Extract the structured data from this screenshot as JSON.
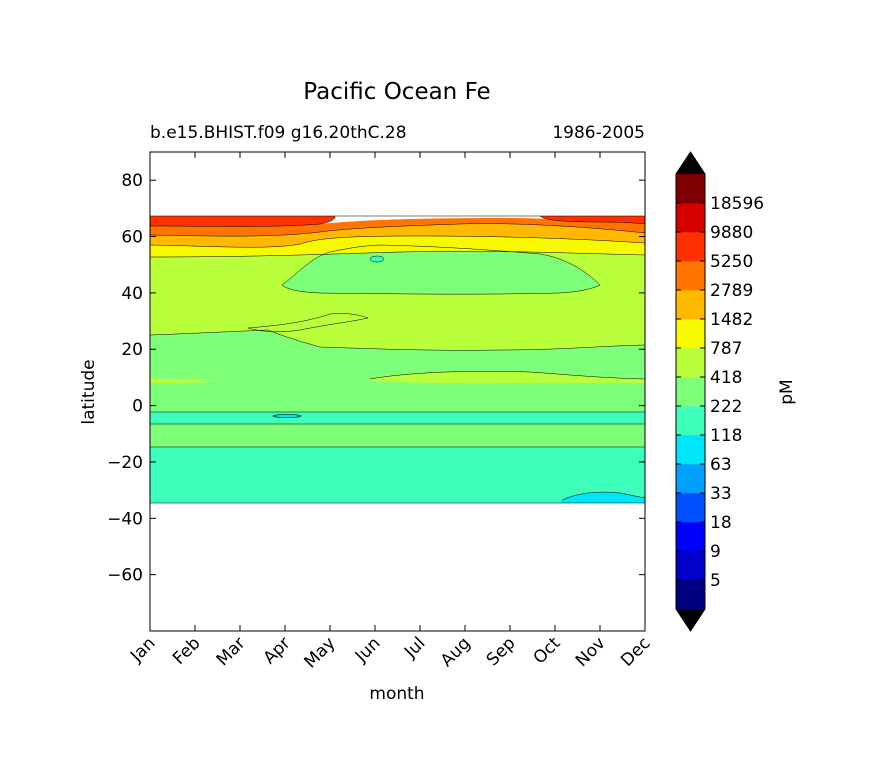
{
  "chart_data": {
    "type": "heatmap",
    "title": "Pacific Ocean Fe",
    "subtitle_left": "b.e15.BHIST.f09 g16.20thC.28",
    "subtitle_right": "1986-2005",
    "xlabel": "month",
    "ylabel": "latitude",
    "x_ticks": [
      "Jan",
      "Feb",
      "Mar",
      "Apr",
      "May",
      "Jun",
      "Jul",
      "Aug",
      "Sep",
      "Oct",
      "Nov",
      "Dec"
    ],
    "y_ticks": [
      80,
      60,
      40,
      20,
      0,
      -20,
      -40,
      -60
    ],
    "y_tick_labels": [
      "80",
      "60",
      "40",
      "20",
      "0",
      "−20",
      "−40",
      "−60"
    ],
    "ylim": [
      -80,
      90
    ],
    "grid": false,
    "colorbar": {
      "label": "pM",
      "extend": "both",
      "levels": [
        5,
        9,
        18,
        33,
        63,
        118,
        222,
        418,
        787,
        1482,
        2789,
        5250,
        9880,
        18596
      ],
      "tick_labels": [
        "5",
        "9",
        "18",
        "33",
        "63",
        "118",
        "222",
        "418",
        "787",
        "1482",
        "2789",
        "5250",
        "9880",
        "18596"
      ],
      "colors": [
        "#00007f",
        "#0000c8",
        "#0000ff",
        "#0050ff",
        "#00a0ff",
        "#00e5f7",
        "#3dffba",
        "#7dff7a",
        "#baff3c",
        "#f7f900",
        "#ffb900",
        "#ff7300",
        "#ff3000",
        "#d70000",
        "#7f0000"
      ],
      "under_color": "#000000",
      "over_color": "#000000"
    },
    "bands": [
      {
        "lat": [
          -34,
          -14
        ],
        "level": "118–222"
      },
      {
        "lat": [
          -14,
          -6
        ],
        "level": "222–418"
      },
      {
        "lat": [
          -6,
          -2
        ],
        "level": "118–222"
      },
      {
        "lat": [
          -2,
          23
        ],
        "level": "222–418"
      },
      {
        "lat": [
          23,
          52
        ],
        "level": "418–787"
      },
      {
        "lat": [
          40,
          57
        ],
        "level": "222–418",
        "months": [
          "May",
          "Oct"
        ]
      },
      {
        "lat": [
          52,
          56
        ],
        "level": "787–1482"
      },
      {
        "lat": [
          56,
          59
        ],
        "level": "1482–2789"
      },
      {
        "lat": [
          59,
          62
        ],
        "level": "2789–5250"
      },
      {
        "lat": [
          62,
          65
        ],
        "level": "5250–9880"
      },
      {
        "lat": [
          65,
          67
        ],
        "level": "9880–18596"
      }
    ]
  }
}
